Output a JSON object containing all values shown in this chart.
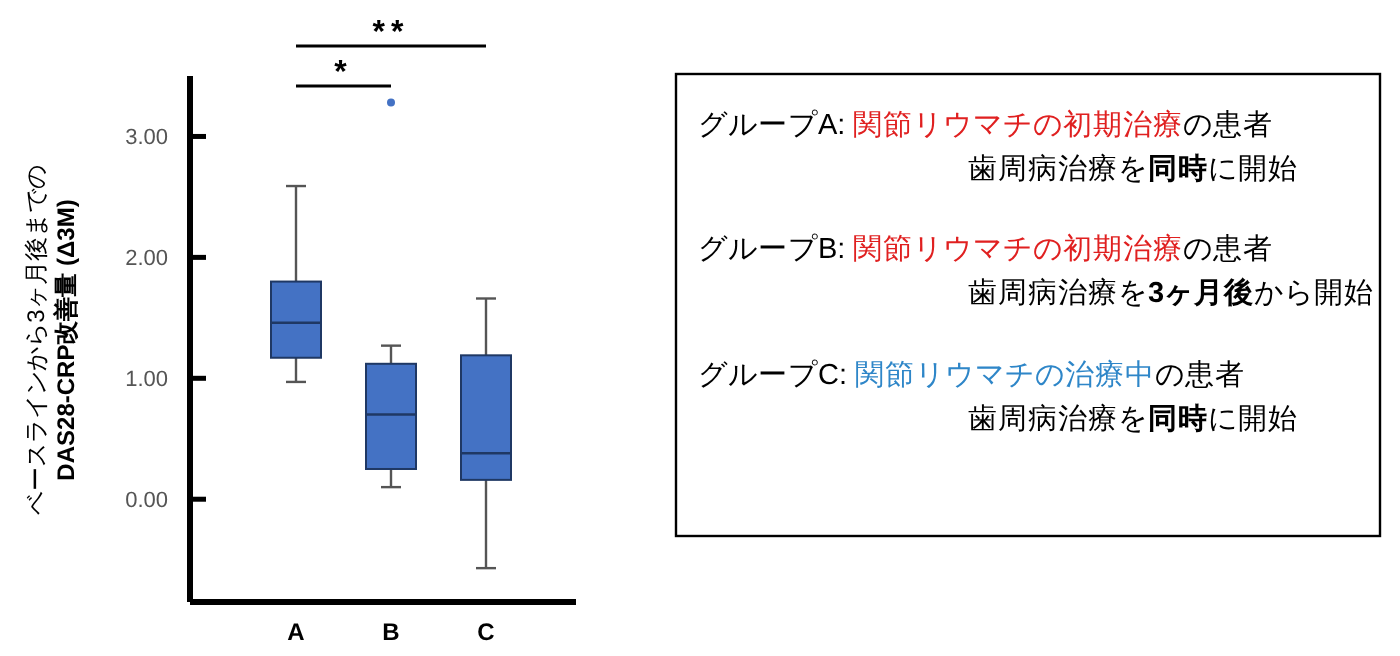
{
  "chart_data": [
    {
      "type": "box",
      "ylabel": "ベースラインから3ヶ月後までの\nDAS28-CRP改善量 (Δ3M)",
      "categories": [
        "A",
        "B",
        "C"
      ],
      "color": "#4472c4",
      "boxes": [
        {
          "low": 0.97,
          "q1": 1.17,
          "median": 1.46,
          "q3": 1.8,
          "high": 2.59
        },
        {
          "low": 0.1,
          "q1": 0.25,
          "median": 0.7,
          "q3": 1.12,
          "high": 1.27,
          "outliers": [
            3.28
          ]
        },
        {
          "low": -0.57,
          "q1": 0.16,
          "median": 0.38,
          "q3": 1.19,
          "high": 1.66
        }
      ],
      "ylim": [
        -0.85,
        3.5
      ],
      "yticks": [
        {
          "value": 0,
          "label": "0.00"
        },
        {
          "value": 1,
          "label": "1.00"
        },
        {
          "value": 2,
          "label": "2.00"
        },
        {
          "value": 3,
          "label": "3.00"
        }
      ],
      "annotations": [
        "*",
        "**"
      ]
    },
    {
      "type": "other",
      "annotations": [
        "グループA: ",
        "関節リウマチの初期治療",
        "の患者",
        "歯周病治療を",
        "同時",
        "に開始",
        "グループB: ",
        "関節リウマチの初期治療",
        "の患者",
        "歯周病治療を",
        "3ヶ月後",
        "から開始",
        "グループC: ",
        "関節リウマチの治療中",
        "の患者",
        "歯周病治療を",
        "同時",
        "に開始"
      ]
    }
  ]
}
